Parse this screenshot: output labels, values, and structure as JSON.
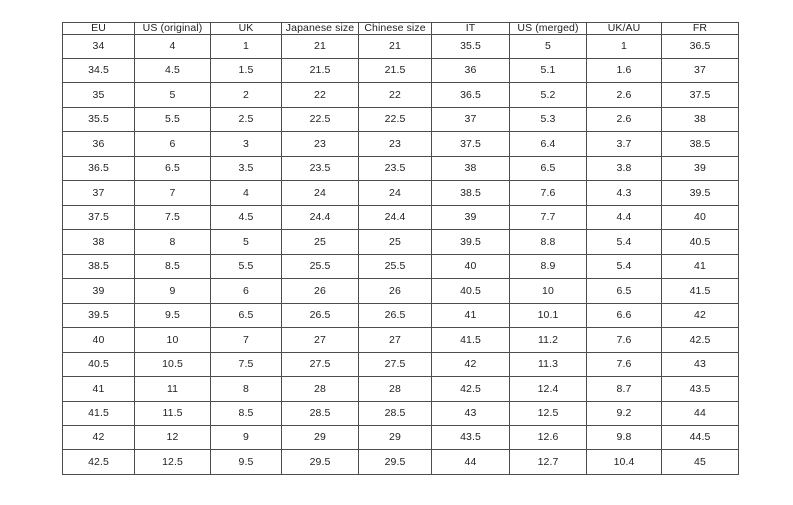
{
  "table": {
    "columns": [
      "EU",
      "US (original)",
      "UK",
      "Japanese size",
      "Chinese size",
      "IT",
      "US (merged)",
      "UK/AU",
      "FR"
    ],
    "rows": [
      [
        "34",
        "4",
        "1",
        "21",
        "21",
        "35.5",
        "5",
        "1",
        "36.5"
      ],
      [
        "34.5",
        "4.5",
        "1.5",
        "21.5",
        "21.5",
        "36",
        "5.1",
        "1.6",
        "37"
      ],
      [
        "35",
        "5",
        "2",
        "22",
        "22",
        "36.5",
        "5.2",
        "2.6",
        "37.5"
      ],
      [
        "35.5",
        "5.5",
        "2.5",
        "22.5",
        "22.5",
        "37",
        "5.3",
        "2.6",
        "38"
      ],
      [
        "36",
        "6",
        "3",
        "23",
        "23",
        "37.5",
        "6.4",
        "3.7",
        "38.5"
      ],
      [
        "36.5",
        "6.5",
        "3.5",
        "23.5",
        "23.5",
        "38",
        "6.5",
        "3.8",
        "39"
      ],
      [
        "37",
        "7",
        "4",
        "24",
        "24",
        "38.5",
        "7.6",
        "4.3",
        "39.5"
      ],
      [
        "37.5",
        "7.5",
        "4.5",
        "24.4",
        "24.4",
        "39",
        "7.7",
        "4.4",
        "40"
      ],
      [
        "38",
        "8",
        "5",
        "25",
        "25",
        "39.5",
        "8.8",
        "5.4",
        "40.5"
      ],
      [
        "38.5",
        "8.5",
        "5.5",
        "25.5",
        "25.5",
        "40",
        "8.9",
        "5.4",
        "41"
      ],
      [
        "39",
        "9",
        "6",
        "26",
        "26",
        "40.5",
        "10",
        "6.5",
        "41.5"
      ],
      [
        "39.5",
        "9.5",
        "6.5",
        "26.5",
        "26.5",
        "41",
        "10.1",
        "6.6",
        "42"
      ],
      [
        "40",
        "10",
        "7",
        "27",
        "27",
        "41.5",
        "11.2",
        "7.6",
        "42.5"
      ],
      [
        "40.5",
        "10.5",
        "7.5",
        "27.5",
        "27.5",
        "42",
        "11.3",
        "7.6",
        "43"
      ],
      [
        "41",
        "11",
        "8",
        "28",
        "28",
        "42.5",
        "12.4",
        "8.7",
        "43.5"
      ],
      [
        "41.5",
        "11.5",
        "8.5",
        "28.5",
        "28.5",
        "43",
        "12.5",
        "9.2",
        "44"
      ],
      [
        "42",
        "12",
        "9",
        "29",
        "29",
        "43.5",
        "12.6",
        "9.8",
        "44.5"
      ],
      [
        "42.5",
        "12.5",
        "9.5",
        "29.5",
        "29.5",
        "44",
        "12.7",
        "10.4",
        "45"
      ]
    ]
  },
  "chart_data": {
    "type": "table",
    "title": "",
    "columns": [
      "EU",
      "US (original)",
      "UK",
      "Japanese size",
      "Chinese size",
      "IT",
      "US (merged)",
      "UK/AU",
      "FR"
    ],
    "rows": [
      [
        34,
        4,
        1,
        21,
        21,
        35.5,
        5,
        1,
        36.5
      ],
      [
        34.5,
        4.5,
        1.5,
        21.5,
        21.5,
        36,
        5.1,
        1.6,
        37
      ],
      [
        35,
        5,
        2,
        22,
        22,
        36.5,
        5.2,
        2.6,
        37.5
      ],
      [
        35.5,
        5.5,
        2.5,
        22.5,
        22.5,
        37,
        5.3,
        2.6,
        38
      ],
      [
        36,
        6,
        3,
        23,
        23,
        37.5,
        6.4,
        3.7,
        38.5
      ],
      [
        36.5,
        6.5,
        3.5,
        23.5,
        23.5,
        38,
        6.5,
        3.8,
        39
      ],
      [
        37,
        7,
        4,
        24,
        24,
        38.5,
        7.6,
        4.3,
        39.5
      ],
      [
        37.5,
        7.5,
        4.5,
        24.4,
        24.4,
        39,
        7.7,
        4.4,
        40
      ],
      [
        38,
        8,
        5,
        25,
        25,
        39.5,
        8.8,
        5.4,
        40.5
      ],
      [
        38.5,
        8.5,
        5.5,
        25.5,
        25.5,
        40,
        8.9,
        5.4,
        41
      ],
      [
        39,
        9,
        6,
        26,
        26,
        40.5,
        10,
        6.5,
        41.5
      ],
      [
        39.5,
        9.5,
        6.5,
        26.5,
        26.5,
        41,
        10.1,
        6.6,
        42
      ],
      [
        40,
        10,
        7,
        27,
        27,
        41.5,
        11.2,
        7.6,
        42.5
      ],
      [
        40.5,
        10.5,
        7.5,
        27.5,
        27.5,
        42,
        11.3,
        7.6,
        43
      ],
      [
        41,
        11,
        8,
        28,
        28,
        42.5,
        12.4,
        8.7,
        43.5
      ],
      [
        41.5,
        11.5,
        8.5,
        28.5,
        28.5,
        43,
        12.5,
        9.2,
        44
      ],
      [
        42,
        12,
        9,
        29,
        29,
        43.5,
        12.6,
        9.8,
        44.5
      ],
      [
        42.5,
        12.5,
        9.5,
        29.5,
        29.5,
        44,
        12.7,
        10.4,
        45
      ]
    ]
  },
  "colors": {
    "page_background": "#ffffff",
    "table_border": "#4d4d4d",
    "text": "#222222"
  }
}
